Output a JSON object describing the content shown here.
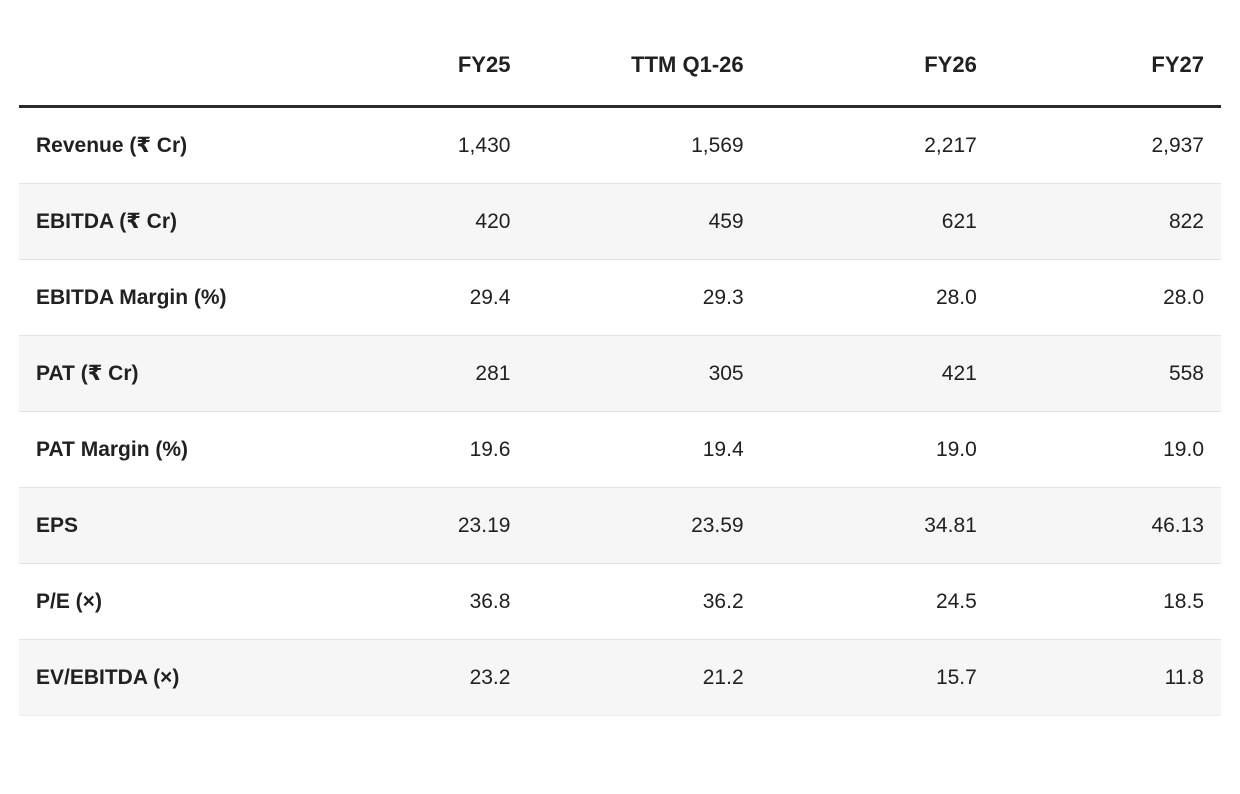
{
  "chart_data": {
    "type": "table",
    "columns": [
      "",
      "FY25",
      "TTM Q1-26",
      "FY26",
      "FY27"
    ],
    "rows": [
      {
        "label": "Revenue (₹ Cr)",
        "values": [
          "1,430",
          "1,569",
          "2,217",
          "2,937"
        ]
      },
      {
        "label": "EBITDA (₹ Cr)",
        "values": [
          "420",
          "459",
          "621",
          "822"
        ]
      },
      {
        "label": "EBITDA Margin (%)",
        "values": [
          "29.4",
          "29.3",
          "28.0",
          "28.0"
        ]
      },
      {
        "label": "PAT (₹ Cr)",
        "values": [
          "281",
          "305",
          "421",
          "558"
        ]
      },
      {
        "label": "PAT Margin (%)",
        "values": [
          "19.6",
          "19.4",
          "19.0",
          "19.0"
        ]
      },
      {
        "label": "EPS",
        "values": [
          "23.19",
          "23.59",
          "34.81",
          "46.13"
        ]
      },
      {
        "label": "P/E (×)",
        "values": [
          "36.8",
          "36.2",
          "24.5",
          "18.5"
        ]
      },
      {
        "label": "EV/EBITDA (×)",
        "values": [
          "23.2",
          "21.2",
          "15.7",
          "11.8"
        ]
      }
    ],
    "layout": {
      "value_alignment": "right",
      "striped_rows": "even",
      "grid": "horizontal-dividers-only"
    },
    "colors": {
      "text": "#212121",
      "header_rule": "#2b2b2b",
      "row_divider": "#e4e4e4",
      "stripe_background": "#f6f6f6",
      "page_background": "#ffffff"
    }
  }
}
